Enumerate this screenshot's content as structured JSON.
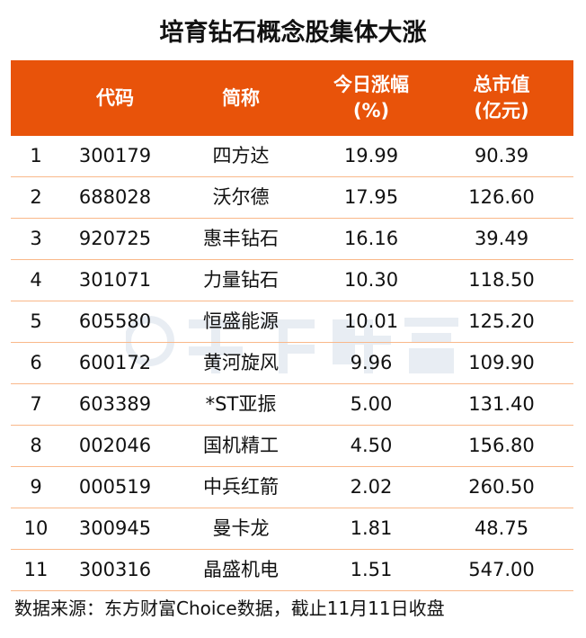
{
  "title": "培育钻石概念股集体大涨",
  "watermark": "东方财富",
  "colors": {
    "header_bg": "#E8530A",
    "row_divider": "#F9B88A"
  },
  "headers": [
    "",
    "代码",
    "简称",
    "今日涨幅\n(%)",
    "总市值\n(亿元)"
  ],
  "rows": [
    [
      "1",
      "300179",
      "四方达",
      "19.99",
      "90.39"
    ],
    [
      "2",
      "688028",
      "沃尔德",
      "17.95",
      "126.60"
    ],
    [
      "3",
      "920725",
      "惠丰钻石",
      "16.16",
      "39.49"
    ],
    [
      "4",
      "301071",
      "力量钻石",
      "10.30",
      "118.50"
    ],
    [
      "5",
      "605580",
      "恒盛能源",
      "10.01",
      "125.20"
    ],
    [
      "6",
      "600172",
      "黄河旋风",
      "9.96",
      "109.90"
    ],
    [
      "7",
      "603389",
      "*ST亚振",
      "5.00",
      "131.40"
    ],
    [
      "8",
      "002046",
      "国机精工",
      "4.50",
      "156.80"
    ],
    [
      "9",
      "000519",
      "中兵红箭",
      "2.02",
      "260.50"
    ],
    [
      "10",
      "300945",
      "曼卡龙",
      "1.81",
      "48.75"
    ],
    [
      "11",
      "300316",
      "晶盛机电",
      "1.51",
      "547.00"
    ]
  ],
  "footer": "数据来源：东方财富Choice数据，截止11月11日收盘"
}
